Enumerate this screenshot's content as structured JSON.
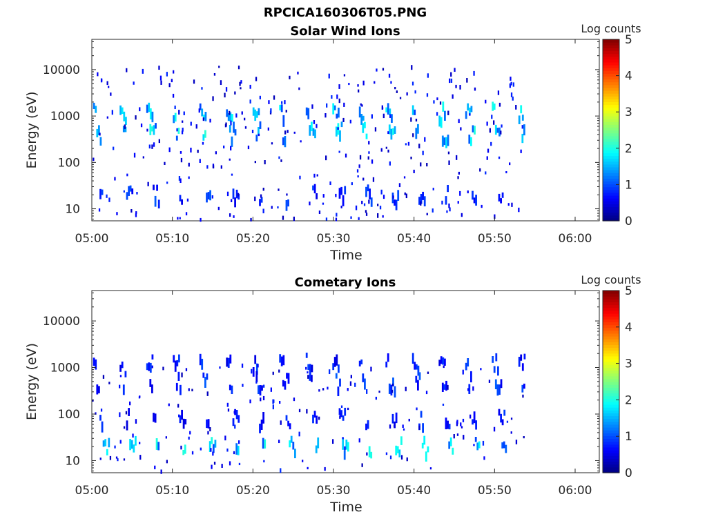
{
  "figure_title": "RPCICA160306T05.PNG",
  "chart_data": [
    {
      "type": "heatmap",
      "title": "Solar Wind Ions",
      "xlabel": "Time",
      "ylabel": "Energy (eV)",
      "xlim": [
        "05:00",
        "06:03"
      ],
      "ylim": [
        5.5,
        45000
      ],
      "yscale": "log",
      "x_ticks": [
        "05:00",
        "05:10",
        "05:20",
        "05:30",
        "05:40",
        "05:50",
        "06:00"
      ],
      "y_ticks": [
        10,
        100,
        1000,
        10000
      ],
      "y_tick_labels": [
        "10",
        "100",
        "1000",
        "10000"
      ],
      "data_time_range": [
        "05:00",
        "05:54"
      ],
      "colorbar": {
        "label": "Log counts",
        "range": [
          0,
          5
        ],
        "ticks": [
          "0",
          "1",
          "2",
          "3",
          "4",
          "5"
        ],
        "colormap": "jet"
      },
      "energy_bands": [
        {
          "energy": 1200,
          "peak_log_counts": 2.0,
          "period_min": 3.3
        },
        {
          "energy": 450,
          "peak_log_counts": 2.1,
          "period_min": 3.3
        },
        {
          "energy": 20,
          "peak_log_counts": 1.1,
          "period_min": 3.3
        }
      ]
    },
    {
      "type": "heatmap",
      "title": "Cometary Ions",
      "xlabel": "Time",
      "ylabel": "Energy (eV)",
      "xlim": [
        "05:00",
        "06:03"
      ],
      "ylim": [
        5.5,
        45000
      ],
      "yscale": "log",
      "x_ticks": [
        "05:00",
        "05:10",
        "05:20",
        "05:30",
        "05:40",
        "05:50",
        "06:00"
      ],
      "y_ticks": [
        10,
        100,
        1000,
        10000
      ],
      "y_tick_labels": [
        "10",
        "100",
        "1000",
        "10000"
      ],
      "data_time_range": [
        "05:00",
        "05:54"
      ],
      "colorbar": {
        "label": "Log counts",
        "range": [
          0,
          5
        ],
        "ticks": [
          "0",
          "1",
          "2",
          "3",
          "4",
          "5"
        ],
        "colormap": "jet"
      },
      "energy_bands": [
        {
          "energy": 1300,
          "peak_log_counts": 1.0,
          "period_min": 3.3
        },
        {
          "energy": 500,
          "peak_log_counts": 1.1,
          "period_min": 3.3
        },
        {
          "energy": 80,
          "peak_log_counts": 1.0,
          "period_min": 3.3
        },
        {
          "energy": 20,
          "peak_log_counts": 2.1,
          "period_min": 3.3
        }
      ]
    }
  ]
}
